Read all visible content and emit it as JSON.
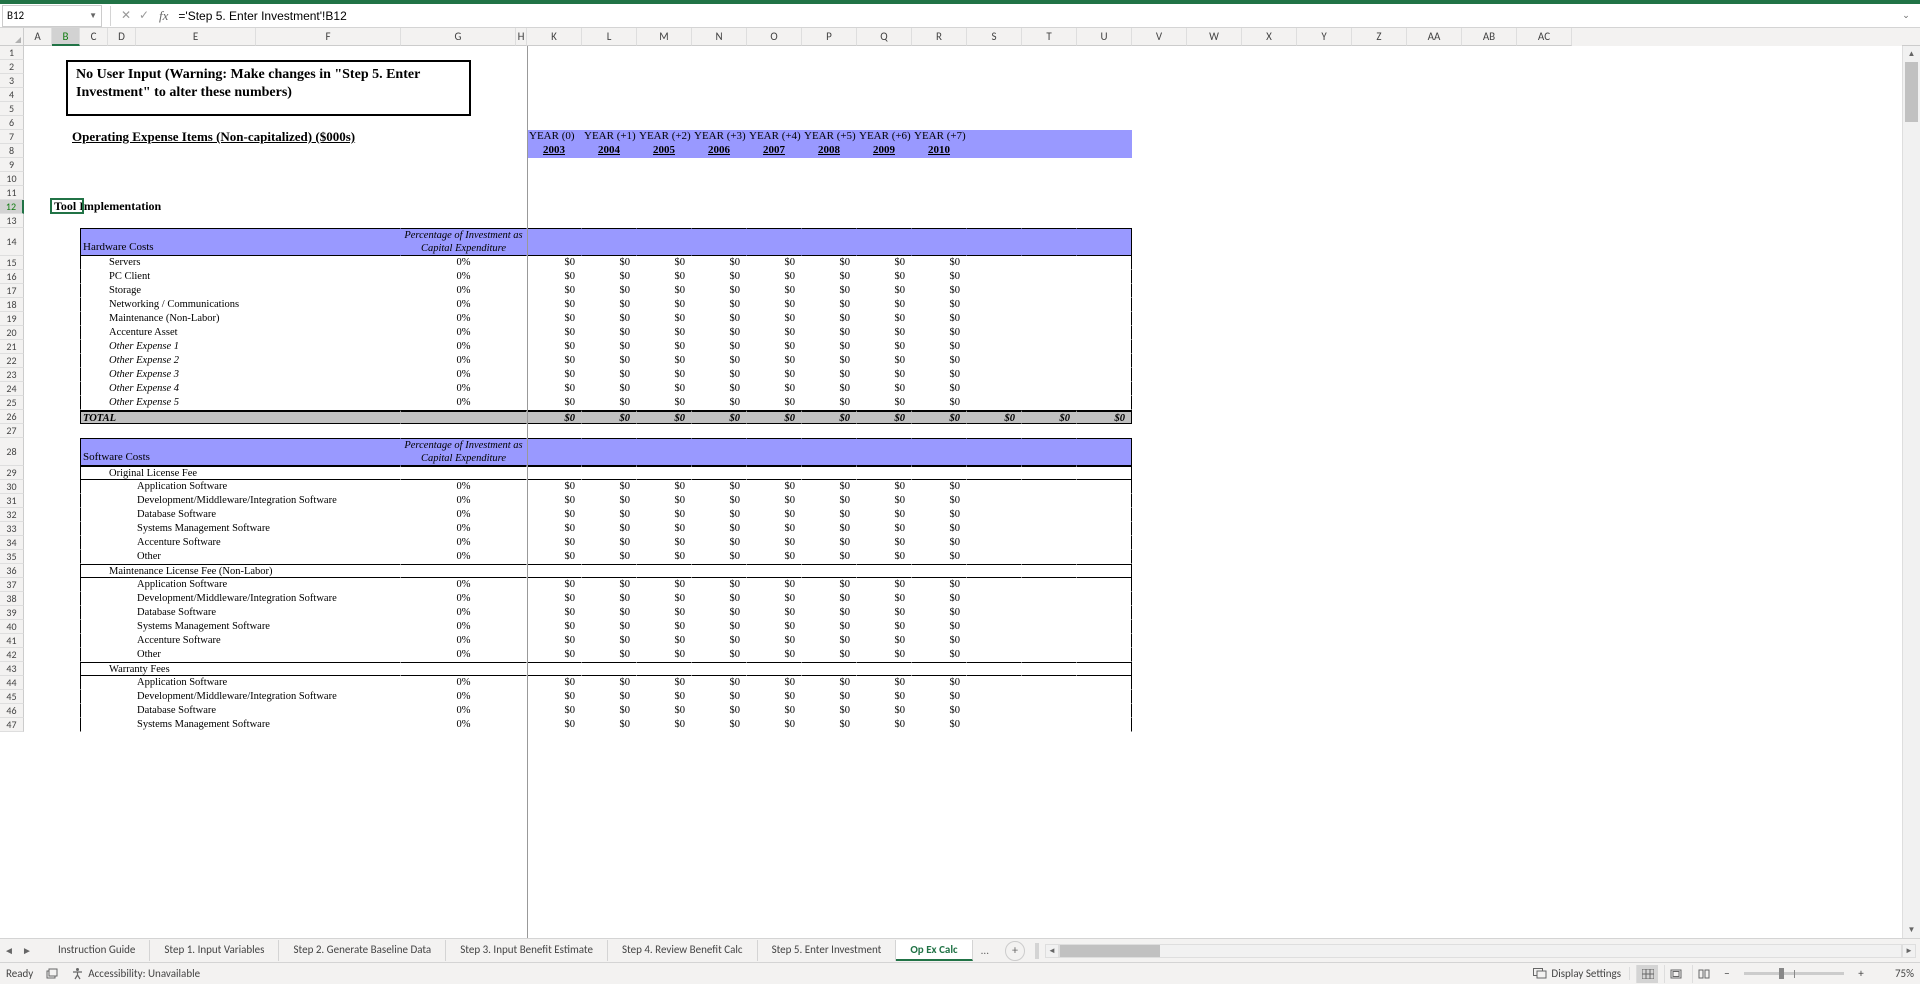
{
  "formula_bar": {
    "cell_ref": "B12",
    "formula": "='Step 5. Enter Investment'!B12"
  },
  "columns": [
    "A",
    "B",
    "C",
    "D",
    "E",
    "F",
    "G",
    "H",
    "K",
    "L",
    "M",
    "N",
    "O",
    "P",
    "Q",
    "R",
    "S",
    "T",
    "U",
    "V",
    "W",
    "X",
    "Y",
    "Z",
    "AA",
    "AB",
    "AC"
  ],
  "selected_col": "B",
  "selected_row": 12,
  "warning_text": "No User Input (Warning: Make changes in \"Step 5. Enter Investment\" to alter these numbers)",
  "section_title": "Operating Expense Items (Non-capitalized) ($000s)",
  "year_labels": [
    "YEAR (0)",
    "YEAR (+1)",
    "YEAR (+2)",
    "YEAR (+3)",
    "YEAR (+4)",
    "YEAR (+5)",
    "YEAR (+6)",
    "YEAR (+7)"
  ],
  "years": [
    "2003",
    "2004",
    "2005",
    "2006",
    "2007",
    "2008",
    "2009",
    "2010"
  ],
  "active_cell_text": "Tool Implementation",
  "pct_header1": "Percentage of Investment as",
  "pct_header2": "Capital Expenditure",
  "hardware": {
    "title": "Hardware Costs",
    "rows": [
      {
        "label": "Servers",
        "pct": "0%"
      },
      {
        "label": "PC Client",
        "pct": "0%"
      },
      {
        "label": "Storage",
        "pct": "0%"
      },
      {
        "label": "Networking / Communications",
        "pct": "0%"
      },
      {
        "label": "Maintenance (Non-Labor)",
        "pct": "0%"
      },
      {
        "label": "Accenture Asset",
        "pct": "0%"
      },
      {
        "label": "Other Expense 1",
        "pct": "0%",
        "italic": true
      },
      {
        "label": "Other Expense 2",
        "pct": "0%",
        "italic": true
      },
      {
        "label": "Other Expense 3",
        "pct": "0%",
        "italic": true
      },
      {
        "label": "Other Expense 4",
        "pct": "0%",
        "italic": true
      },
      {
        "label": "Other Expense 5",
        "pct": "0%",
        "italic": true
      }
    ],
    "total_label": "TOTAL"
  },
  "software": {
    "title": "Software Costs",
    "group1": "Original License Fee",
    "group2": "Maintenance License Fee (Non-Labor)",
    "group3": "Warranty Fees",
    "rows1": [
      {
        "label": "Application Software",
        "pct": "0%"
      },
      {
        "label": "Development/Middleware/Integration Software",
        "pct": "0%"
      },
      {
        "label": "Database Software",
        "pct": "0%"
      },
      {
        "label": "Systems Management Software",
        "pct": "0%"
      },
      {
        "label": "Accenture Software",
        "pct": "0%"
      },
      {
        "label": "Other",
        "pct": "0%"
      }
    ],
    "rows2": [
      {
        "label": "Application Software",
        "pct": "0%"
      },
      {
        "label": "Development/Middleware/Integration Software",
        "pct": "0%"
      },
      {
        "label": "Database Software",
        "pct": "0%"
      },
      {
        "label": "Systems Management Software",
        "pct": "0%"
      },
      {
        "label": "Accenture Software",
        "pct": "0%"
      },
      {
        "label": "Other",
        "pct": "0%"
      }
    ],
    "rows3": [
      {
        "label": "Application Software",
        "pct": "0%"
      },
      {
        "label": "Development/Middleware/Integration Software",
        "pct": "0%"
      },
      {
        "label": "Database Software",
        "pct": "0%"
      },
      {
        "label": "Systems Management Software",
        "pct": "0%"
      }
    ]
  },
  "dollar_zero": "$0",
  "sheet_tabs": [
    "Instruction Guide",
    "Step 1. Input Variables",
    "Step 2. Generate Baseline Data",
    "Step 3.  Input Benefit Estimate",
    "Step 4. Review Benefit Calc",
    "Step 5. Enter Investment",
    "Op Ex Calc"
  ],
  "active_tab": "Op Ex Calc",
  "tab_more": "...",
  "status": {
    "ready": "Ready",
    "accessibility": "Accessibility: Unavailable",
    "display_settings": "Display Settings",
    "zoom": "75%"
  },
  "colors": {
    "header_bg": "#9999ff",
    "total_bg": "#c0c0c0",
    "excel_green": "#217346"
  }
}
